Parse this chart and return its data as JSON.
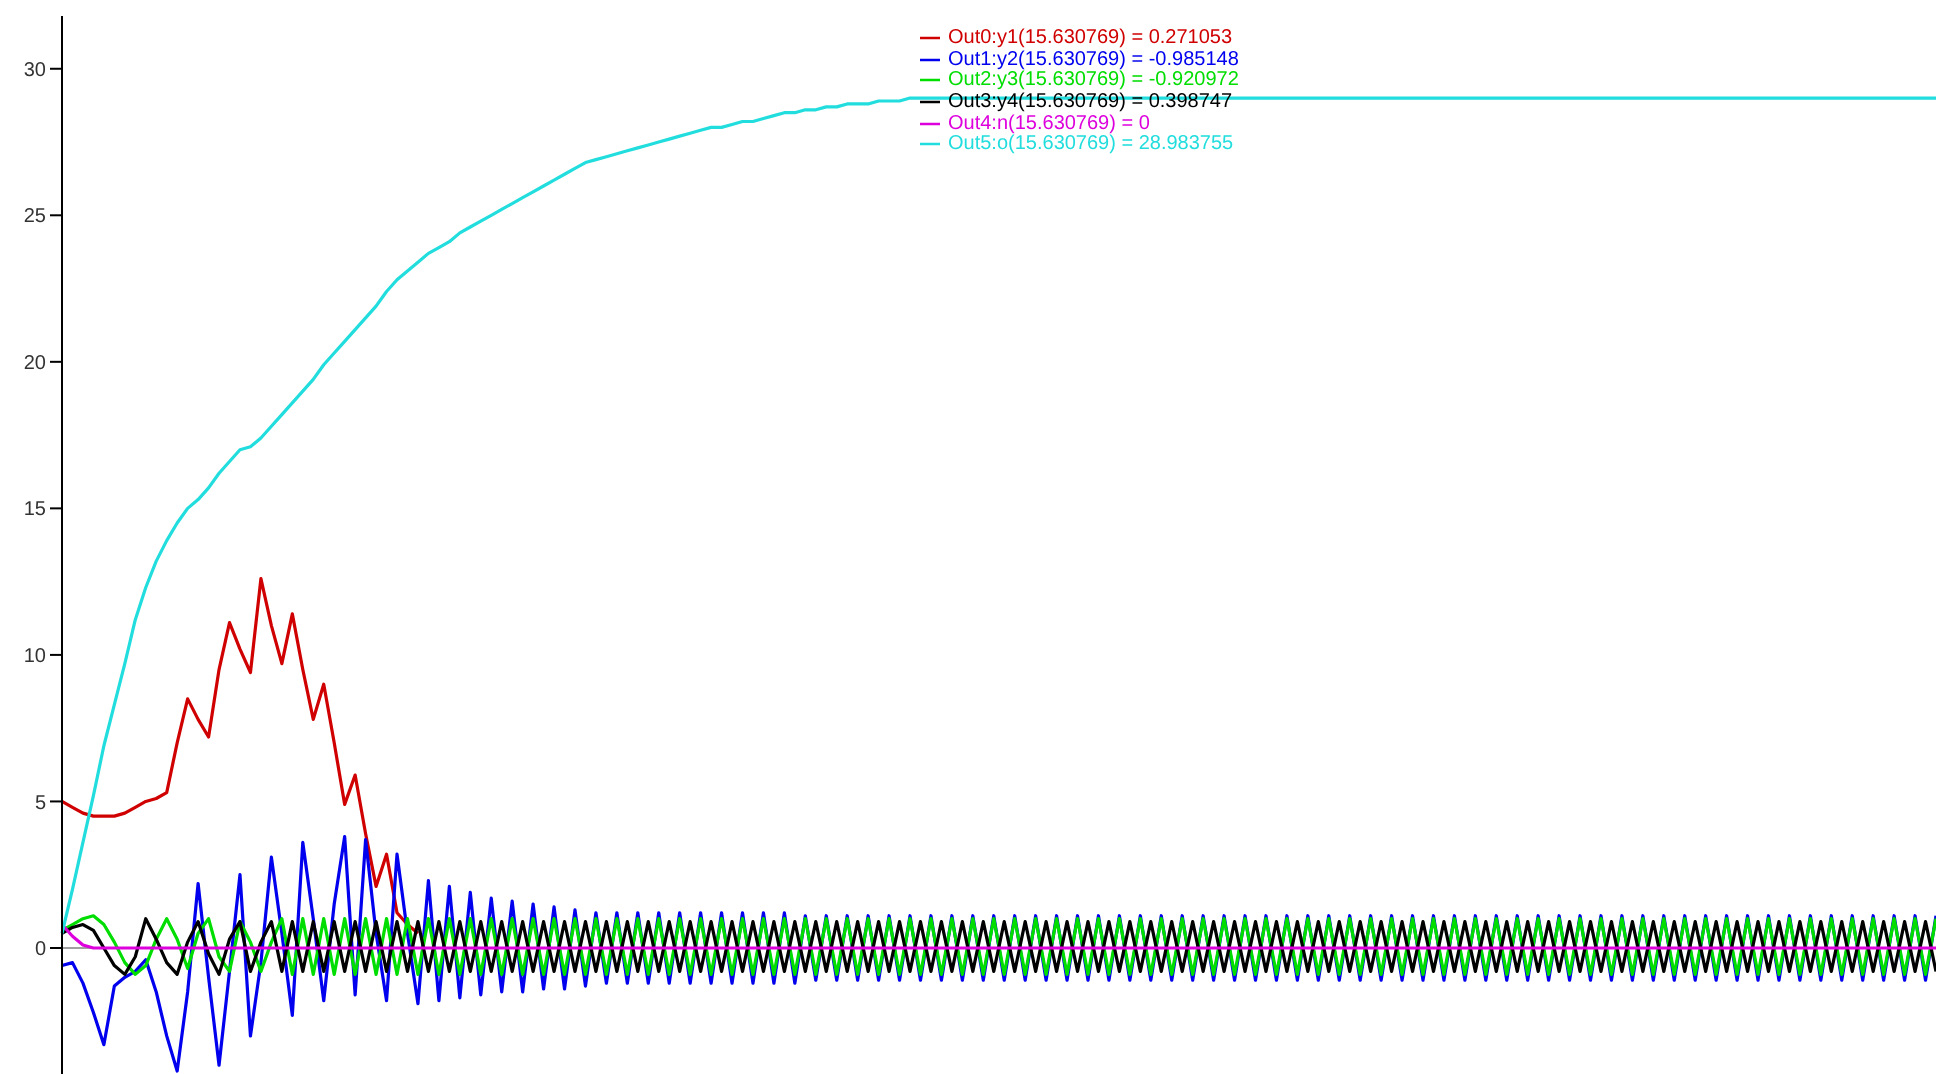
{
  "chart_data": {
    "type": "line",
    "categories": [
      null,
      null,
      null,
      null,
      null,
      null,
      null,
      null,
      null,
      null,
      null,
      null,
      null,
      null,
      null,
      null,
      null,
      null,
      null,
      null,
      null,
      null,
      null,
      null,
      null,
      null,
      null,
      null,
      null,
      null,
      null,
      null,
      null,
      null,
      null,
      null,
      null,
      null,
      null,
      null,
      null,
      null,
      null,
      null,
      null,
      null,
      null,
      null,
      null,
      null,
      null,
      null,
      null,
      null,
      null,
      null,
      null,
      null,
      null,
      null,
      null,
      null,
      null,
      null,
      null,
      null,
      null,
      null,
      null,
      null,
      null,
      null,
      null,
      null,
      null,
      null,
      null,
      null,
      null,
      null,
      null,
      null,
      null,
      null,
      null,
      null,
      null,
      null,
      null,
      null,
      null,
      null,
      null,
      null,
      null,
      null,
      null,
      null,
      null,
      null,
      null,
      null,
      null,
      null,
      null,
      null,
      null,
      null,
      null,
      null,
      null,
      null,
      null,
      null,
      null,
      null,
      null,
      null,
      null,
      null,
      null,
      null,
      null,
      null,
      null,
      null,
      null,
      null,
      null,
      null,
      null,
      null,
      null,
      null,
      null,
      null,
      null,
      null,
      null,
      null,
      null,
      null,
      null,
      null,
      null,
      null,
      null,
      null,
      null,
      null,
      null,
      null,
      null,
      null,
      null,
      null,
      null,
      null,
      null,
      null,
      null,
      null,
      null,
      null,
      null,
      null,
      null,
      null,
      null,
      null,
      null,
      null,
      null,
      null,
      null,
      null,
      null,
      null,
      null,
      null
    ],
    "series": [
      {
        "name": "Out0:y1(15.630769) = 0.271053",
        "color": "#d00000",
        "values": [
          5.0,
          4.8,
          4.6,
          4.5,
          4.5,
          4.5,
          4.6,
          4.8,
          5.0,
          5.1,
          5.3,
          7.0,
          8.5,
          7.8,
          7.2,
          9.5,
          11.1,
          10.2,
          9.4,
          12.6,
          11.0,
          9.7,
          11.4,
          9.5,
          7.8,
          9.0,
          7.0,
          4.9,
          5.9,
          3.9,
          2.1,
          3.2,
          1.2,
          0.8,
          0.5,
          null,
          null,
          null,
          null,
          null,
          null,
          null,
          null,
          null,
          null,
          null,
          null,
          null,
          null,
          null,
          null,
          null,
          null,
          null,
          null,
          null,
          null,
          null,
          null,
          null,
          null,
          null,
          null,
          null,
          null,
          null,
          null,
          null,
          null,
          null,
          null,
          null,
          null,
          null,
          null,
          null,
          null,
          null,
          null,
          null,
          null,
          null,
          null,
          null,
          null,
          null,
          null,
          null,
          null,
          null,
          null,
          null,
          null,
          null,
          null,
          null,
          null,
          null,
          null,
          null,
          null,
          null,
          null,
          null,
          null,
          null,
          null,
          null,
          null,
          null,
          null,
          null,
          null,
          null,
          null,
          null,
          null,
          null,
          null,
          null,
          null,
          null,
          null,
          null,
          null,
          null,
          null,
          null,
          null,
          null,
          null,
          null,
          null,
          null,
          null,
          null,
          null,
          null,
          null,
          null,
          null,
          null,
          null,
          null,
          null,
          null,
          null,
          null,
          null,
          null,
          null,
          null,
          null,
          null,
          null,
          null,
          null,
          null,
          null,
          null,
          null,
          null,
          null,
          null,
          null,
          null,
          null,
          null,
          null,
          null,
          null,
          null,
          null,
          null,
          null,
          null,
          null,
          null,
          null,
          null
        ]
      },
      {
        "name": "Out1:y2(15.630769) = -0.985148",
        "color": "#0000ee",
        "values": [
          -0.6,
          -0.5,
          -1.2,
          -2.2,
          -3.3,
          -1.3,
          -1.0,
          -0.8,
          -0.4,
          -1.5,
          -3.0,
          -4.2,
          -1.5,
          2.2,
          -1.0,
          -4.0,
          -0.8,
          2.5,
          -3.0,
          -0.5,
          3.1,
          0.5,
          -2.3,
          3.6,
          1.0,
          -1.8,
          1.5,
          3.8,
          -1.6,
          3.7,
          0.5,
          -1.8,
          3.2,
          0.5,
          -1.9,
          2.3,
          -1.8,
          2.1,
          -1.7,
          1.9,
          -1.6,
          1.7,
          -1.5,
          1.6,
          -1.5,
          1.5,
          -1.4,
          1.4,
          -1.4,
          1.3,
          -1.3,
          1.2,
          -1.2,
          1.2,
          -1.2,
          1.2,
          -1.2,
          1.2,
          -1.2,
          1.2,
          -1.2,
          1.2,
          -1.2,
          1.2,
          -1.2,
          1.2,
          -1.2,
          1.2,
          -1.2,
          1.2,
          -1.2,
          1.1,
          -1.1,
          1.1,
          -1.1,
          1.1,
          -1.1,
          1.1,
          -1.1,
          1.1,
          -1.1,
          1.1,
          -1.1,
          1.1,
          -1.1,
          1.1,
          -1.1,
          1.1,
          -1.1,
          1.1,
          -1.1,
          1.1,
          -1.1,
          1.1,
          -1.1,
          1.1,
          -1.1,
          1.1,
          -1.1,
          1.1,
          -1.1,
          1.1,
          -1.1,
          1.1,
          -1.1,
          1.1,
          -1.1,
          1.1,
          -1.1,
          1.1,
          -1.1,
          1.1,
          -1.1,
          1.1,
          -1.1,
          1.1,
          -1.1,
          1.1,
          -1.1,
          1.1,
          -1.1,
          1.1,
          -1.1,
          1.1,
          -1.1,
          1.1,
          -1.1,
          1.1,
          -1.1,
          1.1,
          -1.1,
          1.1,
          -1.1,
          1.1,
          -1.1,
          1.1,
          -1.1,
          1.1,
          -1.1,
          1.1,
          -1.1,
          1.1,
          -1.1,
          1.1,
          -1.1,
          1.1,
          -1.1,
          1.1,
          -1.1,
          1.1,
          -1.1,
          1.1,
          -1.1,
          1.1,
          -1.1,
          1.1,
          -1.1,
          1.1,
          -1.1,
          1.1,
          -1.1,
          1.1,
          -1.1,
          1.1,
          -1.1,
          1.1,
          -1.1,
          1.1,
          -1.1,
          1.1,
          -1.1,
          1.1,
          -1.1,
          1.1,
          -1.1,
          1.1,
          -1.1,
          1.1,
          -1.1,
          1.1
        ]
      },
      {
        "name": "Out2:y3(15.630769) = -0.920972",
        "color": "#00dd00",
        "values": [
          0.6,
          0.8,
          1.0,
          1.1,
          0.8,
          0.2,
          -0.5,
          -0.9,
          -0.6,
          0.3,
          1.0,
          0.3,
          -0.7,
          0.5,
          1.0,
          -0.3,
          -0.8,
          0.9,
          0.2,
          -0.8,
          0.2,
          1.0,
          -0.9,
          1.0,
          -0.9,
          1.0,
          -0.9,
          1.0,
          -0.9,
          1.0,
          -0.9,
          1.0,
          -0.9,
          1.0,
          -0.9,
          1.0,
          -0.9,
          1.0,
          -0.9,
          1.0,
          -0.9,
          1.0,
          -0.9,
          1.0,
          -0.9,
          1.0,
          -0.9,
          1.0,
          -0.9,
          1.0,
          -0.9,
          1.0,
          -0.9,
          1.0,
          -0.9,
          1.0,
          -0.9,
          1.0,
          -0.9,
          1.0,
          -0.9,
          1.0,
          -0.9,
          1.0,
          -0.9,
          1.0,
          -0.9,
          1.0,
          -0.9,
          1.0,
          -0.9,
          1.0,
          -0.9,
          1.0,
          -0.9,
          1.0,
          -0.9,
          1.0,
          -0.9,
          1.0,
          -0.9,
          1.0,
          -0.9,
          1.0,
          -0.9,
          1.0,
          -0.9,
          1.0,
          -0.9,
          1.0,
          -0.9,
          1.0,
          -0.9,
          1.0,
          -0.9,
          1.0,
          -0.9,
          1.0,
          -0.9,
          1.0,
          -0.9,
          1.0,
          -0.9,
          1.0,
          -0.9,
          1.0,
          -0.9,
          1.0,
          -0.9,
          1.0,
          -0.9,
          1.0,
          -0.9,
          1.0,
          -0.9,
          1.0,
          -0.9,
          1.0,
          -0.9,
          1.0,
          -0.9,
          1.0,
          -0.9,
          1.0,
          -0.9,
          1.0,
          -0.9,
          1.0,
          -0.9,
          1.0,
          -0.9,
          1.0,
          -0.9,
          1.0,
          -0.9,
          1.0,
          -0.9,
          1.0,
          -0.9,
          1.0,
          -0.9,
          1.0,
          -0.9,
          1.0,
          -0.9,
          1.0,
          -0.9,
          1.0,
          -0.9,
          1.0,
          -0.9,
          1.0,
          -0.9,
          1.0,
          -0.9,
          1.0,
          -0.9,
          1.0,
          -0.9,
          1.0,
          -0.9,
          1.0,
          -0.9,
          1.0,
          -0.9,
          1.0,
          -0.9,
          1.0,
          -0.9,
          1.0,
          -0.9,
          1.0,
          -0.9,
          1.0,
          -0.9,
          1.0,
          -0.9,
          1.0,
          -0.9,
          1.0
        ]
      },
      {
        "name": "Out3:y4(15.630769) = 0.398747",
        "color": "#000000",
        "values": [
          0.5,
          0.7,
          0.8,
          0.6,
          0.0,
          -0.6,
          -0.9,
          -0.3,
          1.0,
          0.3,
          -0.5,
          -0.9,
          0.2,
          0.9,
          -0.2,
          -0.9,
          0.3,
          0.9,
          -0.8,
          0.2,
          0.9,
          -0.8,
          0.9,
          -0.8,
          0.9,
          -0.8,
          0.9,
          -0.8,
          0.9,
          -0.8,
          0.9,
          -0.8,
          0.9,
          -0.8,
          0.9,
          -0.8,
          0.9,
          -0.8,
          0.9,
          -0.8,
          0.9,
          -0.8,
          0.9,
          -0.8,
          0.9,
          -0.8,
          0.9,
          -0.8,
          0.9,
          -0.8,
          0.9,
          -0.8,
          0.9,
          -0.8,
          0.9,
          -0.8,
          0.9,
          -0.8,
          0.9,
          -0.8,
          0.9,
          -0.8,
          0.9,
          -0.8,
          0.9,
          -0.8,
          0.9,
          -0.8,
          0.9,
          -0.8,
          0.9,
          -0.8,
          0.9,
          -0.8,
          0.9,
          -0.8,
          0.9,
          -0.8,
          0.9,
          -0.8,
          0.9,
          -0.8,
          0.9,
          -0.8,
          0.9,
          -0.8,
          0.9,
          -0.8,
          0.9,
          -0.8,
          0.9,
          -0.8,
          0.9,
          -0.8,
          0.9,
          -0.8,
          0.9,
          -0.8,
          0.9,
          -0.8,
          0.9,
          -0.8,
          0.9,
          -0.8,
          0.9,
          -0.8,
          0.9,
          -0.8,
          0.9,
          -0.8,
          0.9,
          -0.8,
          0.9,
          -0.8,
          0.9,
          -0.8,
          0.9,
          -0.8,
          0.9,
          -0.8,
          0.9,
          -0.8,
          0.9,
          -0.8,
          0.9,
          -0.8,
          0.9,
          -0.8,
          0.9,
          -0.8,
          0.9,
          -0.8,
          0.9,
          -0.8,
          0.9,
          -0.8,
          0.9,
          -0.8,
          0.9,
          -0.8,
          0.9,
          -0.8,
          0.9,
          -0.8,
          0.9,
          -0.8,
          0.9,
          -0.8,
          0.9,
          -0.8,
          0.9,
          -0.8,
          0.9,
          -0.8,
          0.9,
          -0.8,
          0.9,
          -0.8,
          0.9,
          -0.8,
          0.9,
          -0.8,
          0.9,
          -0.8,
          0.9,
          -0.8,
          0.9,
          -0.8,
          0.9,
          -0.8,
          0.9,
          -0.8,
          0.9,
          -0.8,
          0.9,
          -0.8,
          0.9,
          -0.8,
          0.9,
          -0.8
        ]
      },
      {
        "name": "Out4:n(15.630769) = 0",
        "color": "#dd00dd",
        "values": [
          0.8,
          0.4,
          0.1,
          0,
          0,
          0,
          0,
          0,
          0,
          0,
          0,
          0,
          0,
          0,
          0,
          0,
          0,
          0,
          0,
          0,
          0,
          0,
          0,
          0,
          0,
          0,
          0,
          0,
          0,
          0,
          0,
          0,
          0,
          0,
          0,
          0,
          0,
          0,
          0,
          0,
          0,
          0,
          0,
          0,
          0,
          0,
          0,
          0,
          0,
          0,
          0,
          0,
          0,
          0,
          0,
          0,
          0,
          0,
          0,
          0,
          0,
          0,
          0,
          0,
          0,
          0,
          0,
          0,
          0,
          0,
          0,
          0,
          0,
          0,
          0,
          0,
          0,
          0,
          0,
          0,
          0,
          0,
          0,
          0,
          0,
          0,
          0,
          0,
          0,
          0,
          0,
          0,
          0,
          0,
          0,
          0,
          0,
          0,
          0,
          0,
          0,
          0,
          0,
          0,
          0,
          0,
          0,
          0,
          0,
          0,
          0,
          0,
          0,
          0,
          0,
          0,
          0,
          0,
          0,
          0,
          0,
          0,
          0,
          0,
          0,
          0,
          0,
          0,
          0,
          0,
          0,
          0,
          0,
          0,
          0,
          0,
          0,
          0,
          0,
          0,
          0,
          0,
          0,
          0,
          0,
          0,
          0,
          0,
          0,
          0,
          0,
          0,
          0,
          0,
          0,
          0,
          0,
          0,
          0,
          0,
          0,
          0,
          0,
          0,
          0,
          0,
          0,
          0,
          0,
          0,
          0,
          0,
          0,
          0,
          0,
          0,
          0,
          0,
          0,
          0
        ]
      },
      {
        "name": "Out5:o(15.630769) = 28.983755",
        "color": "#22dddd",
        "values": [
          0.5,
          2.0,
          3.6,
          5.2,
          6.9,
          8.3,
          9.7,
          11.2,
          12.3,
          13.2,
          13.9,
          14.5,
          15.0,
          15.3,
          15.7,
          16.2,
          16.6,
          17.0,
          17.1,
          17.4,
          17.8,
          18.2,
          18.6,
          19.0,
          19.4,
          19.9,
          20.3,
          20.7,
          21.1,
          21.5,
          21.9,
          22.4,
          22.8,
          23.1,
          23.4,
          23.7,
          23.9,
          24.1,
          24.4,
          24.6,
          24.8,
          25.0,
          25.2,
          25.4,
          25.6,
          25.8,
          26.0,
          26.2,
          26.4,
          26.6,
          26.8,
          26.9,
          27.0,
          27.1,
          27.2,
          27.3,
          27.4,
          27.5,
          27.6,
          27.7,
          27.8,
          27.9,
          28.0,
          28.0,
          28.1,
          28.2,
          28.2,
          28.3,
          28.4,
          28.5,
          28.5,
          28.6,
          28.6,
          28.7,
          28.7,
          28.8,
          28.8,
          28.8,
          28.9,
          28.9,
          28.9,
          29.0,
          29.0,
          29.0,
          29.0,
          29.0,
          29.0,
          29.0,
          29.0,
          29.0,
          29.0,
          29.0,
          29.0,
          29.0,
          29.0,
          29.0,
          29.0,
          29.0,
          29.0,
          29.0,
          29.0,
          29.0,
          29.0,
          29.0,
          29.0,
          29.0,
          29.0,
          29.0,
          29.0,
          29.0,
          29.0,
          29.0,
          29.0,
          29.0,
          29.0,
          29.0,
          29.0,
          29.0,
          29.0,
          29.0,
          29.0,
          29.0,
          29.0,
          29.0,
          29.0,
          29.0,
          29.0,
          29.0,
          29.0,
          29.0,
          29.0,
          29.0,
          29.0,
          29.0,
          29.0,
          29.0,
          29.0,
          29.0,
          29.0,
          29.0,
          29.0,
          29.0,
          29.0,
          29.0,
          29.0,
          29.0,
          29.0,
          29.0,
          29.0,
          29.0,
          29.0,
          29.0,
          29.0,
          29.0,
          29.0,
          29.0,
          29.0,
          29.0,
          29.0,
          29.0,
          29.0,
          29.0,
          29.0,
          29.0,
          29.0,
          29.0,
          29.0,
          29.0,
          29.0,
          29.0,
          29.0,
          29.0,
          29.0,
          29.0,
          29.0,
          29.0,
          29.0,
          29.0,
          29.0,
          29.0
        ]
      }
    ],
    "ylim": [
      -4.3,
      31.8
    ],
    "yticks": [
      0,
      5,
      10,
      15,
      20,
      25,
      30
    ],
    "ref_lines": [
      {
        "axis": "y",
        "value": 0,
        "color": "#a0a0a0"
      }
    ],
    "legend": "top",
    "marker": "none",
    "line_style": "solid"
  }
}
